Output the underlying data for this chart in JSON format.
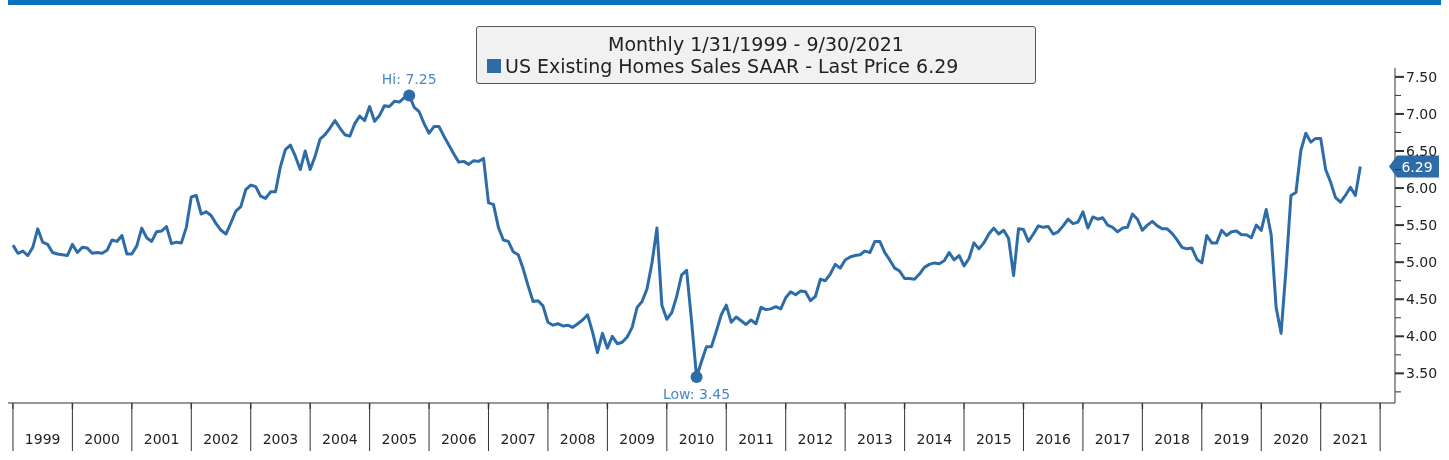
{
  "chart_data": {
    "type": "line",
    "legend_title": "Monthly 1/31/1999 - 9/30/2021",
    "legend": "top",
    "marker": "none",
    "line_style": "solid",
    "xlim": [
      "1998-12",
      "2022-04"
    ],
    "xticks": [
      {
        "value": "1999-01",
        "label": null
      },
      {
        "value": "1999-07",
        "label": "1999"
      },
      {
        "value": "2000-01",
        "label": null
      },
      {
        "value": "2000-07",
        "label": "2000"
      },
      {
        "value": "2001-01",
        "label": null
      },
      {
        "value": "2001-07",
        "label": "2001"
      },
      {
        "value": "2002-01",
        "label": null
      },
      {
        "value": "2002-07",
        "label": "2002"
      },
      {
        "value": "2003-01",
        "label": null
      },
      {
        "value": "2003-07",
        "label": "2003"
      },
      {
        "value": "2004-01",
        "label": null
      },
      {
        "value": "2004-07",
        "label": "2004"
      },
      {
        "value": "2005-01",
        "label": null
      },
      {
        "value": "2005-07",
        "label": "2005"
      },
      {
        "value": "2006-01",
        "label": null
      },
      {
        "value": "2006-07",
        "label": "2006"
      },
      {
        "value": "2007-01",
        "label": null
      },
      {
        "value": "2007-07",
        "label": "2007"
      },
      {
        "value": "2008-01",
        "label": null
      },
      {
        "value": "2008-07",
        "label": "2008"
      },
      {
        "value": "2009-01",
        "label": null
      },
      {
        "value": "2009-07",
        "label": "2009"
      },
      {
        "value": "2010-01",
        "label": null
      },
      {
        "value": "2010-07",
        "label": "2010"
      },
      {
        "value": "2011-01",
        "label": null
      },
      {
        "value": "2011-07",
        "label": "2011"
      },
      {
        "value": "2012-01",
        "label": null
      },
      {
        "value": "2012-07",
        "label": "2012"
      },
      {
        "value": "2013-01",
        "label": null
      },
      {
        "value": "2013-07",
        "label": "2013"
      },
      {
        "value": "2014-01",
        "label": null
      },
      {
        "value": "2014-07",
        "label": "2014"
      },
      {
        "value": "2015-01",
        "label": null
      },
      {
        "value": "2015-07",
        "label": "2015"
      },
      {
        "value": "2016-01",
        "label": null
      },
      {
        "value": "2016-07",
        "label": "2016"
      },
      {
        "value": "2017-01",
        "label": null
      },
      {
        "value": "2017-07",
        "label": "2017"
      },
      {
        "value": "2018-01",
        "label": null
      },
      {
        "value": "2018-07",
        "label": "2018"
      },
      {
        "value": "2019-01",
        "label": null
      },
      {
        "value": "2019-07",
        "label": "2019"
      },
      {
        "value": "2020-01",
        "label": null
      },
      {
        "value": "2020-07",
        "label": "2020"
      },
      {
        "value": "2021-01",
        "label": null
      },
      {
        "value": "2021-07",
        "label": "2021"
      },
      {
        "value": "2022-01",
        "label": null
      }
    ],
    "ylim": [
      3.1,
      7.62
    ],
    "yticks": [
      {
        "value": 3.5,
        "label": "3.50"
      },
      {
        "value": 3.25,
        "label": null
      },
      {
        "value": 3.75,
        "label": null
      },
      {
        "value": 4,
        "label": "4.00"
      },
      {
        "value": 4.25,
        "label": null
      },
      {
        "value": 4.5,
        "label": "4.50"
      },
      {
        "value": 4.75,
        "label": null
      },
      {
        "value": 5,
        "label": "5.00"
      },
      {
        "value": 5.25,
        "label": null
      },
      {
        "value": 5.5,
        "label": "5.50"
      },
      {
        "value": 5.75,
        "label": null
      },
      {
        "value": 6,
        "label": "6.00"
      },
      {
        "value": 6.25,
        "label": null
      },
      {
        "value": 6.5,
        "label": "6.50"
      },
      {
        "value": 6.75,
        "label": null
      },
      {
        "value": 7,
        "label": "7.00"
      },
      {
        "value": 7.25,
        "label": null
      },
      {
        "value": 7.5,
        "label": "7.50"
      }
    ],
    "x": [
      "1999-01",
      "1999-02",
      "1999-03",
      "1999-04",
      "1999-05",
      "1999-06",
      "1999-07",
      "1999-08",
      "1999-09",
      "1999-10",
      "1999-11",
      "1999-12",
      "2000-01",
      "2000-02",
      "2000-03",
      "2000-04",
      "2000-05",
      "2000-06",
      "2000-07",
      "2000-08",
      "2000-09",
      "2000-10",
      "2000-11",
      "2000-12",
      "2001-01",
      "2001-02",
      "2001-03",
      "2001-04",
      "2001-05",
      "2001-06",
      "2001-07",
      "2001-08",
      "2001-09",
      "2001-10",
      "2001-11",
      "2001-12",
      "2002-01",
      "2002-02",
      "2002-03",
      "2002-04",
      "2002-05",
      "2002-06",
      "2002-07",
      "2002-08",
      "2002-09",
      "2002-10",
      "2002-11",
      "2002-12",
      "2003-01",
      "2003-02",
      "2003-03",
      "2003-04",
      "2003-05",
      "2003-06",
      "2003-07",
      "2003-08",
      "2003-09",
      "2003-10",
      "2003-11",
      "2003-12",
      "2004-01",
      "2004-02",
      "2004-03",
      "2004-04",
      "2004-05",
      "2004-06",
      "2004-07",
      "2004-08",
      "2004-09",
      "2004-10",
      "2004-11",
      "2004-12",
      "2005-01",
      "2005-02",
      "2005-03",
      "2005-04",
      "2005-05",
      "2005-06",
      "2005-07",
      "2005-08",
      "2005-09",
      "2005-10",
      "2005-11",
      "2005-12",
      "2006-01",
      "2006-02",
      "2006-03",
      "2006-04",
      "2006-05",
      "2006-06",
      "2006-07",
      "2006-08",
      "2006-09",
      "2006-10",
      "2006-11",
      "2006-12",
      "2007-01",
      "2007-02",
      "2007-03",
      "2007-04",
      "2007-05",
      "2007-06",
      "2007-07",
      "2007-08",
      "2007-09",
      "2007-10",
      "2007-11",
      "2007-12",
      "2008-01",
      "2008-02",
      "2008-03",
      "2008-04",
      "2008-05",
      "2008-06",
      "2008-07",
      "2008-08",
      "2008-09",
      "2008-10",
      "2008-11",
      "2008-12",
      "2009-01",
      "2009-02",
      "2009-03",
      "2009-04",
      "2009-05",
      "2009-06",
      "2009-07",
      "2009-08",
      "2009-09",
      "2009-10",
      "2009-11",
      "2009-12",
      "2010-01",
      "2010-02",
      "2010-03",
      "2010-04",
      "2010-05",
      "2010-06",
      "2010-07",
      "2010-08",
      "2010-09",
      "2010-10",
      "2010-11",
      "2010-12",
      "2011-01",
      "2011-02",
      "2011-03",
      "2011-04",
      "2011-05",
      "2011-06",
      "2011-07",
      "2011-08",
      "2011-09",
      "2011-10",
      "2011-11",
      "2011-12",
      "2012-01",
      "2012-02",
      "2012-03",
      "2012-04",
      "2012-05",
      "2012-06",
      "2012-07",
      "2012-08",
      "2012-09",
      "2012-10",
      "2012-11",
      "2012-12",
      "2013-01",
      "2013-02",
      "2013-03",
      "2013-04",
      "2013-05",
      "2013-06",
      "2013-07",
      "2013-08",
      "2013-09",
      "2013-10",
      "2013-11",
      "2013-12",
      "2014-01",
      "2014-02",
      "2014-03",
      "2014-04",
      "2014-05",
      "2014-06",
      "2014-07",
      "2014-08",
      "2014-09",
      "2014-10",
      "2014-11",
      "2014-12",
      "2015-01",
      "2015-02",
      "2015-03",
      "2015-04",
      "2015-05",
      "2015-06",
      "2015-07",
      "2015-08",
      "2015-09",
      "2015-10",
      "2015-11",
      "2015-12",
      "2016-01",
      "2016-02",
      "2016-03",
      "2016-04",
      "2016-05",
      "2016-06",
      "2016-07",
      "2016-08",
      "2016-09",
      "2016-10",
      "2016-11",
      "2016-12",
      "2017-01",
      "2017-02",
      "2017-03",
      "2017-04",
      "2017-05",
      "2017-06",
      "2017-07",
      "2017-08",
      "2017-09",
      "2017-10",
      "2017-11",
      "2017-12",
      "2018-01",
      "2018-02",
      "2018-03",
      "2018-04",
      "2018-05",
      "2018-06",
      "2018-07",
      "2018-08",
      "2018-09",
      "2018-10",
      "2018-11",
      "2018-12",
      "2019-01",
      "2019-02",
      "2019-03",
      "2019-04",
      "2019-05",
      "2019-06",
      "2019-07",
      "2019-08",
      "2019-09",
      "2019-10",
      "2019-11",
      "2019-12",
      "2020-01",
      "2020-02",
      "2020-03",
      "2020-04",
      "2020-05",
      "2020-06",
      "2020-07",
      "2020-08",
      "2020-09",
      "2020-10",
      "2020-11",
      "2020-12",
      "2021-01",
      "2021-02",
      "2021-03",
      "2021-04",
      "2021-05",
      "2021-06",
      "2021-07",
      "2021-08",
      "2021-09"
    ],
    "series": [
      {
        "name": "US Existing Homes Sales SAAR - Last Price 6.29",
        "color": "#2e6ca8",
        "values": [
          5.23,
          5.12,
          5.15,
          5.09,
          5.2,
          5.45,
          5.27,
          5.24,
          5.13,
          5.11,
          5.1,
          5.09,
          5.24,
          5.13,
          5.2,
          5.19,
          5.12,
          5.13,
          5.12,
          5.16,
          5.3,
          5.28,
          5.36,
          5.11,
          5.11,
          5.22,
          5.46,
          5.33,
          5.28,
          5.41,
          5.42,
          5.48,
          5.25,
          5.27,
          5.26,
          5.47,
          5.88,
          5.9,
          5.65,
          5.68,
          5.63,
          5.52,
          5.43,
          5.38,
          5.53,
          5.69,
          5.75,
          5.98,
          6.04,
          6.02,
          5.89,
          5.86,
          5.95,
          5.95,
          6.29,
          6.52,
          6.58,
          6.43,
          6.25,
          6.5,
          6.25,
          6.43,
          6.66,
          6.72,
          6.81,
          6.91,
          6.81,
          6.72,
          6.7,
          6.87,
          6.97,
          6.91,
          7.1,
          6.9,
          6.98,
          7.11,
          7.1,
          7.17,
          7.16,
          7.22,
          7.25,
          7.09,
          7.03,
          6.87,
          6.74,
          6.83,
          6.83,
          6.7,
          6.58,
          6.46,
          6.35,
          6.36,
          6.32,
          6.37,
          6.36,
          6.4,
          5.8,
          5.78,
          5.47,
          5.3,
          5.28,
          5.14,
          5.1,
          4.91,
          4.68,
          4.47,
          4.48,
          4.41,
          4.19,
          4.15,
          4.17,
          4.14,
          4.15,
          4.12,
          4.17,
          4.22,
          4.29,
          4.06,
          3.78,
          4.04,
          3.84,
          4.0,
          3.9,
          3.92,
          3.99,
          4.12,
          4.39,
          4.47,
          4.64,
          4.99,
          5.46,
          4.42,
          4.23,
          4.32,
          4.54,
          4.83,
          4.89,
          4.2,
          3.45,
          3.66,
          3.86,
          3.86,
          4.07,
          4.29,
          4.42,
          4.19,
          4.26,
          4.21,
          4.16,
          4.22,
          4.17,
          4.39,
          4.36,
          4.37,
          4.4,
          4.37,
          4.52,
          4.6,
          4.56,
          4.61,
          4.6,
          4.48,
          4.54,
          4.77,
          4.75,
          4.84,
          4.97,
          4.92,
          5.03,
          5.07,
          5.09,
          5.1,
          5.15,
          5.13,
          5.28,
          5.28,
          5.13,
          5.03,
          4.92,
          4.88,
          4.78,
          4.78,
          4.77,
          4.84,
          4.93,
          4.97,
          4.99,
          4.98,
          5.02,
          5.13,
          5.03,
          5.09,
          4.95,
          5.05,
          5.26,
          5.18,
          5.26,
          5.38,
          5.46,
          5.38,
          5.43,
          5.32,
          4.82,
          5.45,
          5.44,
          5.28,
          5.38,
          5.49,
          5.47,
          5.48,
          5.38,
          5.41,
          5.49,
          5.58,
          5.52,
          5.54,
          5.68,
          5.46,
          5.61,
          5.58,
          5.6,
          5.5,
          5.47,
          5.41,
          5.46,
          5.47,
          5.65,
          5.58,
          5.43,
          5.5,
          5.55,
          5.49,
          5.45,
          5.45,
          5.39,
          5.3,
          5.2,
          5.18,
          5.19,
          5.04,
          4.99,
          5.36,
          5.26,
          5.26,
          5.43,
          5.36,
          5.41,
          5.42,
          5.37,
          5.37,
          5.33,
          5.5,
          5.43,
          5.71,
          5.37,
          4.39,
          4.04,
          4.91,
          5.9,
          5.94,
          6.51,
          6.74,
          6.62,
          6.67,
          6.67,
          6.25,
          6.08,
          5.87,
          5.81,
          5.9,
          6.01,
          5.9,
          6.29
        ]
      }
    ],
    "annotations": [
      {
        "text": "Hi: 7.25",
        "x": "2005-09",
        "y": 7.25
      },
      {
        "text": "Low: 3.45",
        "x": "2010-07",
        "y": 3.45
      },
      {
        "text": "6.29",
        "x": "2021-09",
        "y": 6.29
      }
    ]
  }
}
